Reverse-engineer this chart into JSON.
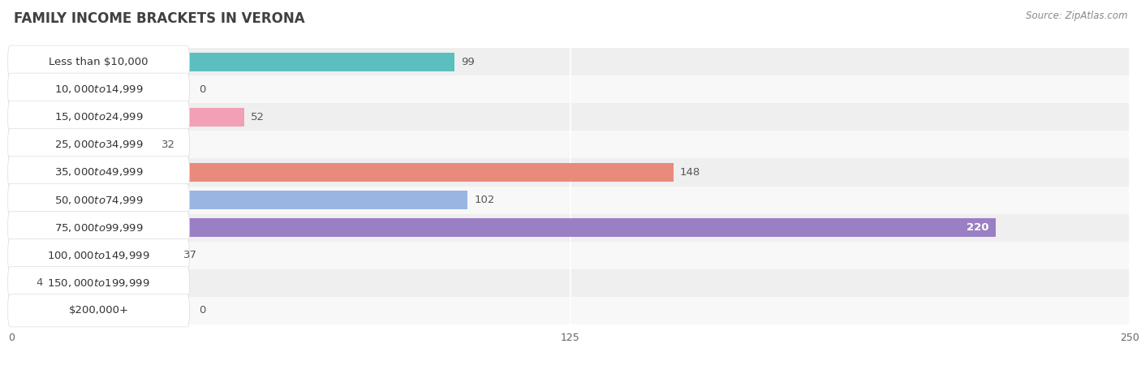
{
  "title": "FAMILY INCOME BRACKETS IN VERONA",
  "source": "Source: ZipAtlas.com",
  "categories": [
    "Less than $10,000",
    "$10,000 to $14,999",
    "$15,000 to $24,999",
    "$25,000 to $34,999",
    "$35,000 to $49,999",
    "$50,000 to $74,999",
    "$75,000 to $99,999",
    "$100,000 to $149,999",
    "$150,000 to $199,999",
    "$200,000+"
  ],
  "values": [
    99,
    0,
    52,
    32,
    148,
    102,
    220,
    37,
    4,
    0
  ],
  "bar_colors": [
    "#5bbfc0",
    "#b0aadf",
    "#f2a0b5",
    "#f5ca8e",
    "#e88b7d",
    "#9ab5e2",
    "#9b7fc4",
    "#6ecfca",
    "#b0aadf",
    "#f4b8c8"
  ],
  "row_bg_even": "#efefef",
  "row_bg_odd": "#f8f8f8",
  "xlim": [
    0,
    250
  ],
  "xticks": [
    0,
    125,
    250
  ],
  "bar_height": 0.68,
  "background_color": "#ffffff",
  "label_fontsize": 9.5,
  "value_fontsize": 9.5,
  "title_fontsize": 12,
  "source_fontsize": 8.5,
  "value_220_color": "#ffffff"
}
